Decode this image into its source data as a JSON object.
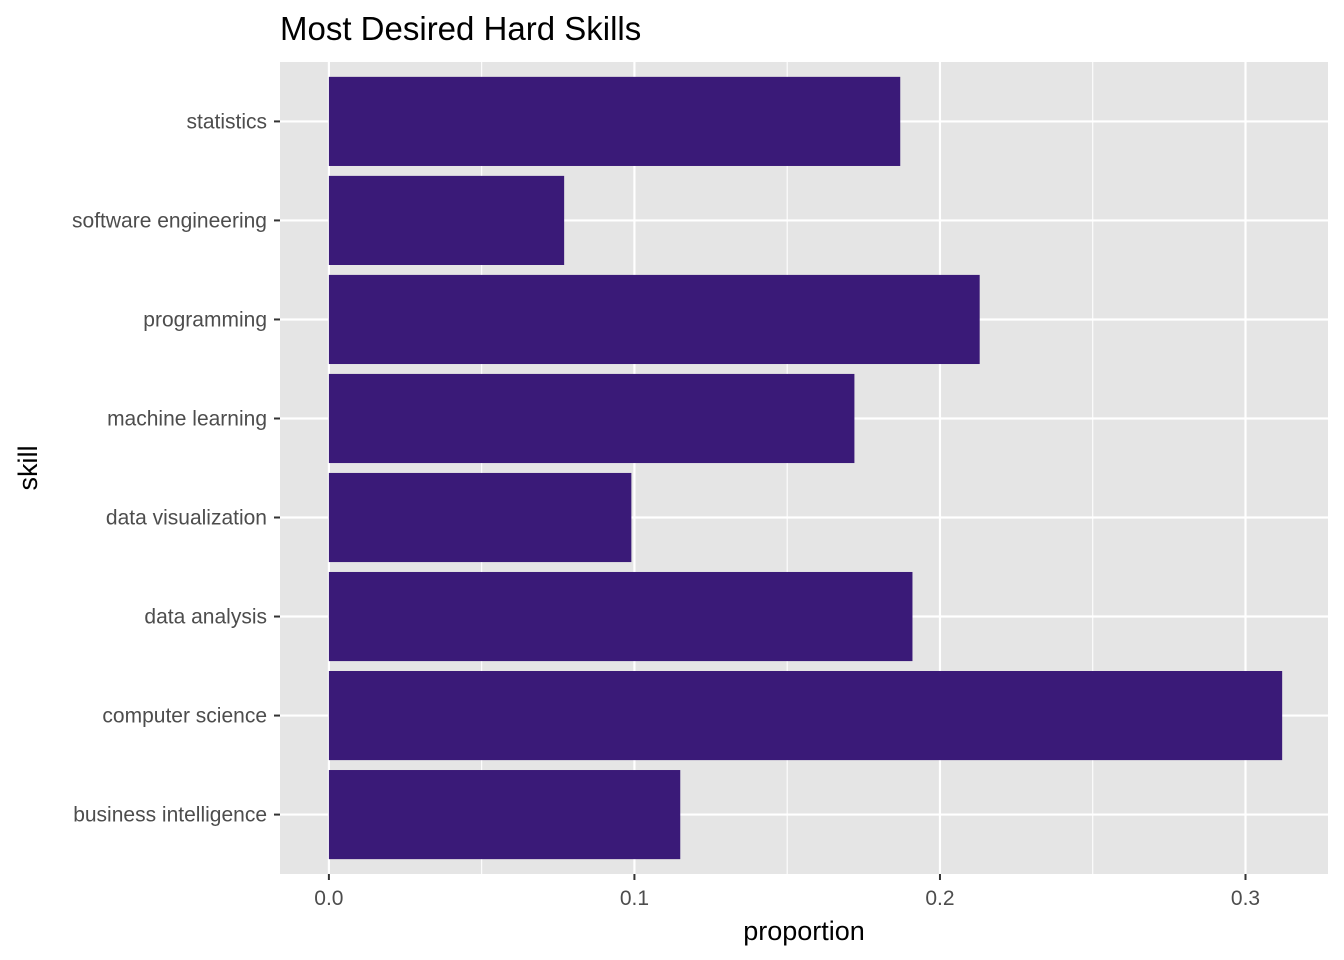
{
  "chart_data": {
    "type": "bar",
    "orientation": "horizontal",
    "title": "Most Desired Hard Skills",
    "xlabel": "proportion",
    "ylabel": "skill",
    "categories": [
      "business intelligence",
      "computer science",
      "data analysis",
      "data visualization",
      "machine learning",
      "programming",
      "software engineering",
      "statistics"
    ],
    "values": [
      0.115,
      0.312,
      0.191,
      0.099,
      0.172,
      0.213,
      0.077,
      0.187
    ],
    "xlim": [
      -0.016,
      0.327
    ],
    "xticks": [
      0,
      0.1,
      0.2,
      0.3
    ],
    "xtick_labels": [
      "0.0",
      "0.1",
      "0.2",
      "0.3"
    ],
    "grid": true,
    "colors": {
      "bar": "#3a1a78",
      "panel": "#e5e5e5",
      "grid": "#ffffff",
      "tick": "#333333"
    }
  }
}
